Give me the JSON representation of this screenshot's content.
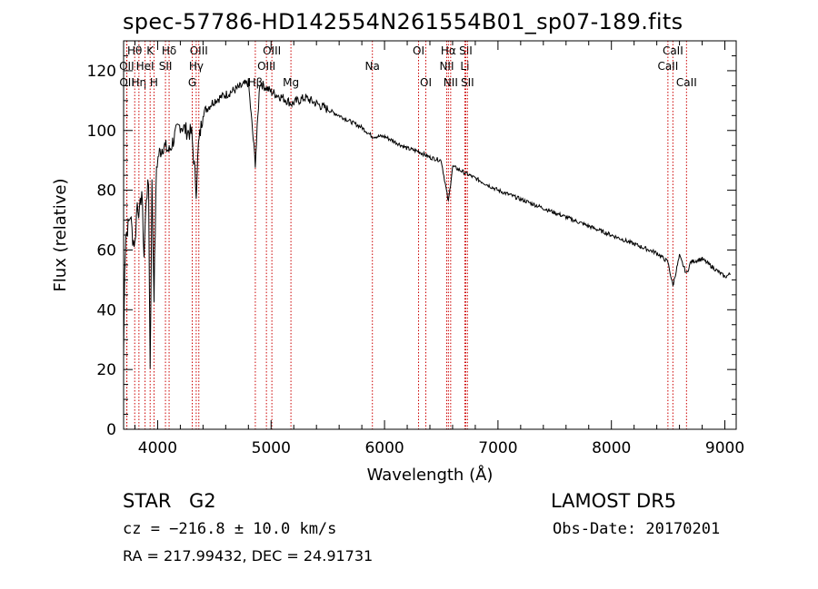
{
  "header": {
    "title": "spec-57786-HD142554N261554B01_sp07-189.fits"
  },
  "footer": {
    "object_class": "STAR",
    "subclass": "G2",
    "survey": "LAMOST DR5",
    "cz": "cz = −216.8 ± 10.0 km/s",
    "obs_date": "Obs-Date: 20170201",
    "ra_dec": "RA = 217.99432, DEC =  24.91731"
  },
  "colors": {
    "spectrum": "#000000",
    "line_marker": "#cc0000",
    "axes": "#000000"
  },
  "chart_data": {
    "type": "line",
    "title": "spec-57786-HD142554N261554B01_sp07-189.fits",
    "xlabel": "Wavelength (Å)",
    "ylabel": "Flux (relative)",
    "xlim": [
      3700,
      9100
    ],
    "ylim": [
      0,
      130
    ],
    "xticks": [
      4000,
      5000,
      6000,
      7000,
      8000,
      9000
    ],
    "yticks": [
      0,
      20,
      40,
      60,
      80,
      100,
      120
    ],
    "grid": false,
    "series": [
      {
        "x": [
          3700,
          3710,
          3720,
          3740,
          3760,
          3780,
          3800,
          3820,
          3840,
          3860,
          3880,
          3900,
          3920,
          3934,
          3950,
          3968,
          3990,
          4010,
          4050,
          4101,
          4150,
          4200,
          4250,
          4300,
          4340,
          4360,
          4400,
          4500,
          4600,
          4700,
          4800,
          4861,
          4900,
          5000,
          5100,
          5183,
          5300,
          5400,
          5500,
          5600,
          5700,
          5800,
          5893,
          6000,
          6100,
          6200,
          6300,
          6400,
          6500,
          6563,
          6600,
          6700,
          6800,
          7000,
          7200,
          7400,
          7600,
          7800,
          8000,
          8200,
          8400,
          8498,
          8542,
          8600,
          8662,
          8700,
          8800,
          8900,
          9000,
          9050
        ],
        "values": [
          25,
          55,
          65,
          68,
          72,
          64,
          62,
          76,
          72,
          80,
          58,
          78,
          82,
          20,
          82,
          45,
          88,
          92,
          95,
          93,
          98,
          102,
          100,
          99,
          80,
          95,
          106,
          110,
          112,
          114,
          116,
          89,
          116,
          113,
          111,
          109,
          111,
          109,
          107,
          105,
          103,
          101,
          98,
          98,
          96,
          94,
          93,
          91,
          90,
          76,
          88,
          86,
          84,
          80,
          77,
          74,
          71,
          68,
          65,
          62,
          59,
          56,
          48,
          58,
          52,
          56,
          57,
          54,
          51,
          52
        ]
      }
    ],
    "lines": [
      {
        "label": "Hθ",
        "x": 3798,
        "row": 0
      },
      {
        "label": "OII",
        "x": 3727,
        "row": 1
      },
      {
        "label": "OII",
        "x": 3729,
        "row": 2
      },
      {
        "label": "Hη",
        "x": 3835,
        "row": 2
      },
      {
        "label": "K",
        "x": 3934,
        "row": 0
      },
      {
        "label": "HeI",
        "x": 3889,
        "row": 1
      },
      {
        "label": "H",
        "x": 3968,
        "row": 2
      },
      {
        "label": "Hδ",
        "x": 4101,
        "row": 0
      },
      {
        "label": "SII",
        "x": 4069,
        "row": 1
      },
      {
        "label": "OIII",
        "x": 4363,
        "row": 0
      },
      {
        "label": "Hγ",
        "x": 4340,
        "row": 1
      },
      {
        "label": "G",
        "x": 4305,
        "row": 2
      },
      {
        "label": "Hβ",
        "x": 4861,
        "row": 2
      },
      {
        "label": "OIII",
        "x": 5007,
        "row": 0
      },
      {
        "label": "OIII",
        "x": 4959,
        "row": 1
      },
      {
        "label": "Mg",
        "x": 5175,
        "row": 2
      },
      {
        "label": "Na",
        "x": 5893,
        "row": 1
      },
      {
        "label": "OI",
        "x": 6300,
        "row": 0
      },
      {
        "label": "OI",
        "x": 6364,
        "row": 2
      },
      {
        "label": "Hα",
        "x": 6563,
        "row": 0
      },
      {
        "label": "NII",
        "x": 6548,
        "row": 1
      },
      {
        "label": "NII",
        "x": 6583,
        "row": 2
      },
      {
        "label": "SII",
        "x": 6716,
        "row": 0
      },
      {
        "label": "Li",
        "x": 6708,
        "row": 1
      },
      {
        "label": "SII",
        "x": 6731,
        "row": 2
      },
      {
        "label": "CaII",
        "x": 8542,
        "row": 0
      },
      {
        "label": "CaII",
        "x": 8498,
        "row": 1
      },
      {
        "label": "CaII",
        "x": 8662,
        "row": 2
      }
    ]
  }
}
